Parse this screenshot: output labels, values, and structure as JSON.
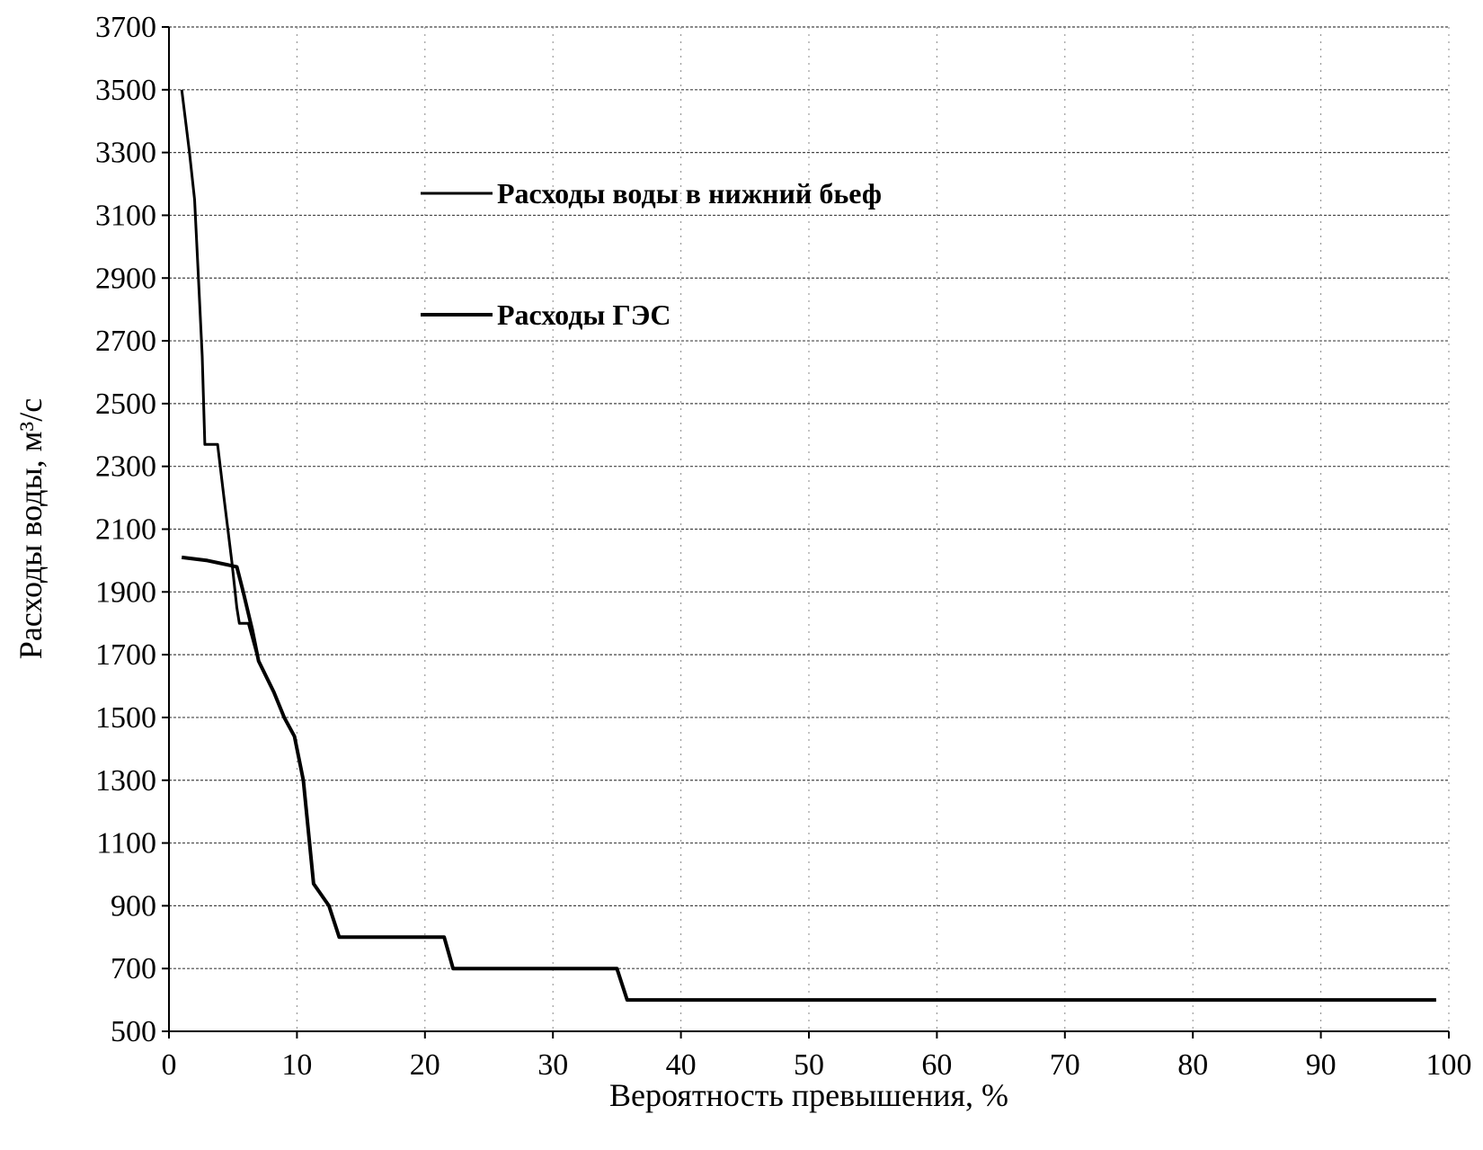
{
  "chart_data": {
    "type": "line",
    "title": "",
    "xlabel": "Вероятность превышения,  %",
    "ylabel": "Расходы воды, м³/с",
    "xlim": [
      0,
      100
    ],
    "ylim": [
      500,
      3700
    ],
    "x_ticks": [
      0,
      10,
      20,
      30,
      40,
      50,
      60,
      70,
      80,
      90,
      100
    ],
    "y_ticks": [
      500,
      700,
      900,
      1100,
      1300,
      1500,
      1700,
      1900,
      2100,
      2300,
      2500,
      2700,
      2900,
      3100,
      3300,
      3500,
      3700
    ],
    "grid": true,
    "legend_position": "upper-middle",
    "series": [
      {
        "name": "Расходы воды в нижний бьеф",
        "color": "#000000",
        "points": [
          [
            1.0,
            3500
          ],
          [
            1.6,
            3300
          ],
          [
            2.0,
            3150
          ],
          [
            2.3,
            2900
          ],
          [
            2.6,
            2650
          ],
          [
            2.8,
            2370
          ],
          [
            3.8,
            2370
          ],
          [
            4.3,
            2200
          ],
          [
            4.9,
            2000
          ],
          [
            5.3,
            1850
          ],
          [
            5.5,
            1800
          ],
          [
            6.2,
            1800
          ],
          [
            7.0,
            1680
          ],
          [
            8.2,
            1580
          ],
          [
            9.0,
            1500
          ],
          [
            9.8,
            1440
          ],
          [
            10.5,
            1300
          ],
          [
            11.3,
            970
          ],
          [
            12.5,
            900
          ],
          [
            13.3,
            800
          ],
          [
            21.5,
            800
          ],
          [
            22.2,
            700
          ],
          [
            35.0,
            700
          ],
          [
            35.8,
            600
          ],
          [
            99.0,
            600
          ]
        ]
      },
      {
        "name": "Расходы ГЭС",
        "color": "#000000",
        "points": [
          [
            1.0,
            2010
          ],
          [
            3.0,
            2000
          ],
          [
            5.3,
            1980
          ],
          [
            5.8,
            1900
          ],
          [
            6.5,
            1780
          ],
          [
            7.0,
            1680
          ],
          [
            8.2,
            1580
          ],
          [
            9.0,
            1500
          ],
          [
            9.8,
            1440
          ],
          [
            10.5,
            1300
          ],
          [
            11.3,
            970
          ],
          [
            12.5,
            900
          ],
          [
            13.3,
            800
          ],
          [
            21.5,
            800
          ],
          [
            22.2,
            700
          ],
          [
            35.0,
            700
          ],
          [
            35.8,
            600
          ],
          [
            99.0,
            600
          ]
        ]
      }
    ]
  }
}
